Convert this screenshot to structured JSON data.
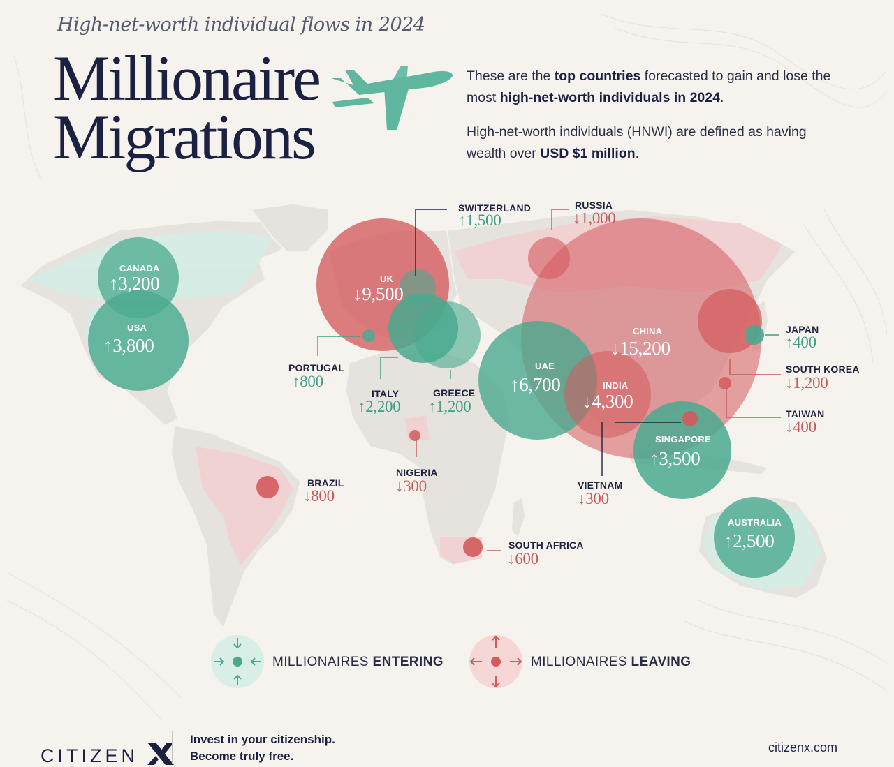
{
  "header": {
    "subtitle": "High-net-worth individual flows in 2024",
    "title_line1": "Millionaire",
    "title_line2": "Migrations"
  },
  "intro": {
    "p1_a": "These are the ",
    "p1_b": "top countries",
    "p1_c": " forecasted to gain and lose the most ",
    "p1_d": "high-net-worth individuals in 2024",
    "p1_e": ".",
    "p2_a": "High-net-worth individuals (HNWI) are defined as having wealth over ",
    "p2_b": "USD $1 million",
    "p2_c": "."
  },
  "countries": [
    {
      "name": "CANADA",
      "value": "↑3,200",
      "direction": "entering"
    },
    {
      "name": "USA",
      "value": "↑3,800",
      "direction": "entering"
    },
    {
      "name": "UK",
      "value": "↓9,500",
      "direction": "leaving"
    },
    {
      "name": "SWITZERLAND",
      "value": "↑1,500",
      "direction": "entering"
    },
    {
      "name": "RUSSIA",
      "value": "↓1,000",
      "direction": "leaving"
    },
    {
      "name": "PORTUGAL",
      "value": "↑800",
      "direction": "entering"
    },
    {
      "name": "ITALY",
      "value": "↑2,200",
      "direction": "entering"
    },
    {
      "name": "GREECE",
      "value": "↑1,200",
      "direction": "entering"
    },
    {
      "name": "UAE",
      "value": "↑6,700",
      "direction": "entering"
    },
    {
      "name": "CHINA",
      "value": "↓15,200",
      "direction": "leaving"
    },
    {
      "name": "INDIA",
      "value": "↓4,300",
      "direction": "leaving"
    },
    {
      "name": "JAPAN",
      "value": "↑400",
      "direction": "entering"
    },
    {
      "name": "SOUTH KOREA",
      "value": "↓1,200",
      "direction": "leaving"
    },
    {
      "name": "TAIWAN",
      "value": "↓400",
      "direction": "leaving"
    },
    {
      "name": "SINGAPORE",
      "value": "↑3,500",
      "direction": "entering"
    },
    {
      "name": "VIETNAM",
      "value": "↓300",
      "direction": "leaving"
    },
    {
      "name": "NIGERIA",
      "value": "↓300",
      "direction": "leaving"
    },
    {
      "name": "BRAZIL",
      "value": "↓800",
      "direction": "leaving"
    },
    {
      "name": "SOUTH AFRICA",
      "value": "↓600",
      "direction": "leaving"
    },
    {
      "name": "AUSTRALIA",
      "value": "↑2,500",
      "direction": "entering"
    }
  ],
  "legend": {
    "entering_a": "MILLIONAIRES ",
    "entering_b": "ENTERING",
    "leaving_a": "MILLIONAIRES ",
    "leaving_b": "LEAVING"
  },
  "footer": {
    "logo": "CITIZEN",
    "tagline_1": "Invest in your citizenship.",
    "tagline_2": "Become truly free.",
    "site": "citizenx.com"
  },
  "colors": {
    "entering": "#4aa98f",
    "leaving": "#d45a5d",
    "text_dark": "#1c2142",
    "background": "#f6f3ee"
  }
}
